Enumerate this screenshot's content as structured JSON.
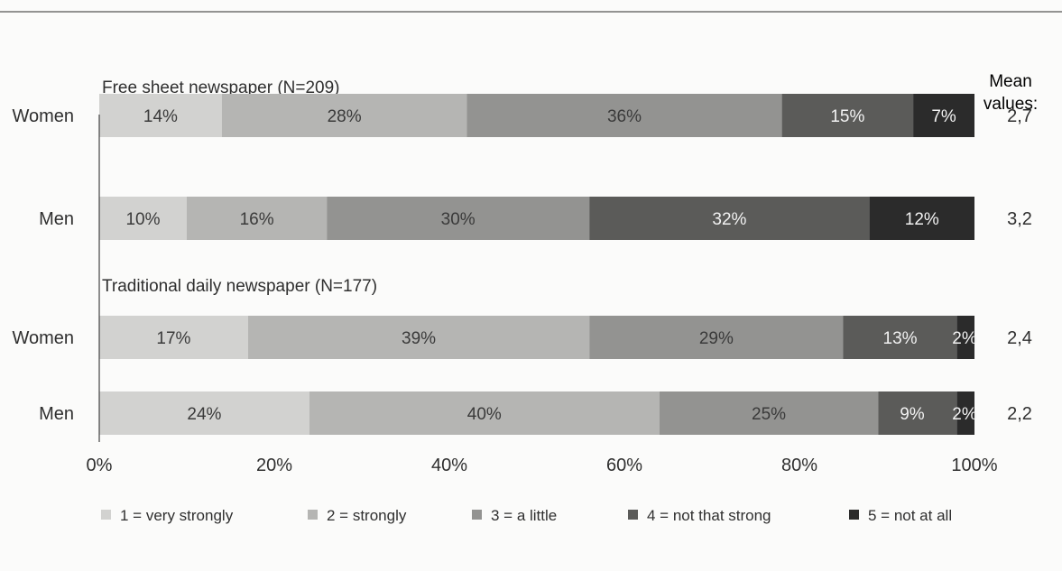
{
  "chart_data": {
    "type": "bar",
    "orientation": "horizontal",
    "stacked": true,
    "xlim": [
      0,
      100
    ],
    "xticks": [
      "0%",
      "20%",
      "40%",
      "60%",
      "80%",
      "100%"
    ],
    "mean_header": "Mean values:",
    "legend": [
      {
        "label": "1 = very strongly",
        "color": "#d2d2d0"
      },
      {
        "label": "2 = strongly",
        "color": "#b5b5b3"
      },
      {
        "label": "3 = a little",
        "color": "#939391"
      },
      {
        "label": "4 = not that strong",
        "color": "#5b5b59"
      },
      {
        "label": "5 = not at all",
        "color": "#2b2b2b"
      }
    ],
    "groups": [
      {
        "title": "Free sheet newspaper (N=209)",
        "rows": [
          {
            "label": "Women",
            "values": [
              14,
              28,
              36,
              15,
              7
            ],
            "value_labels": [
              "14%",
              "28%",
              "36%",
              "15%",
              "7%"
            ],
            "mean": "2,7"
          },
          {
            "label": "Men",
            "values": [
              10,
              16,
              30,
              32,
              12
            ],
            "value_labels": [
              "10%",
              "16%",
              "30%",
              "32%",
              "12%"
            ],
            "mean": "3,2"
          }
        ]
      },
      {
        "title": "Traditional daily newspaper (N=177)",
        "rows": [
          {
            "label": "Women",
            "values": [
              17,
              39,
              29,
              13,
              2
            ],
            "value_labels": [
              "17%",
              "39%",
              "29%",
              "13%",
              "2%"
            ],
            "mean": "2,4"
          },
          {
            "label": "Men",
            "values": [
              24,
              40,
              25,
              9,
              2
            ],
            "value_labels": [
              "24%",
              "40%",
              "25%",
              "9%",
              "2%"
            ],
            "mean": "2,2"
          }
        ]
      }
    ]
  }
}
